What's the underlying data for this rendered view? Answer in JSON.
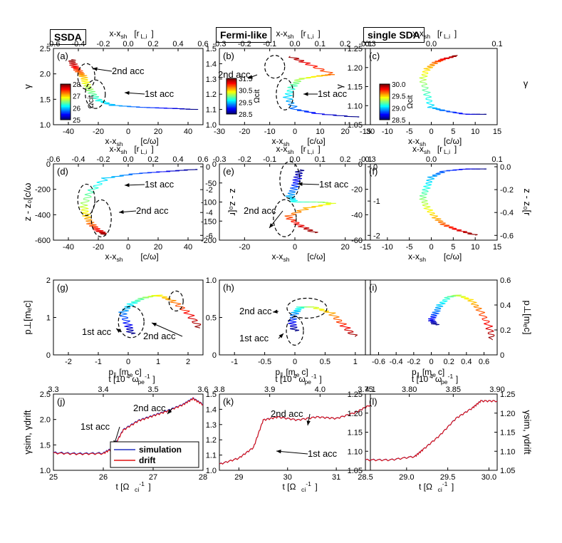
{
  "column_titles": [
    "SSDA",
    "Fermi-like",
    "single SDA"
  ],
  "chart_data": [
    {
      "id": "a",
      "type": "line",
      "panel_label": "(a)",
      "xlabel": "x-x_sh[c/ω_pe]",
      "xlabel_top": "x-x_sh[r_L,i]",
      "ylabel": "γ",
      "xlim": [
        -50,
        50
      ],
      "ylim": [
        1.0,
        2.5
      ],
      "xticks": [
        -40,
        -20,
        0,
        20,
        40
      ],
      "xticks_top": [
        "-0.6",
        "-0.4",
        "-0.2",
        "0.0",
        "0.2",
        "0.4",
        "0.6"
      ],
      "yticks": [
        "1.0",
        "1.5",
        "2.0",
        "2.5"
      ],
      "colorbar": {
        "label": "Ω_ci t",
        "ticks": [
          "28",
          "27",
          "26",
          "25"
        ],
        "range": [
          25,
          28
        ]
      },
      "annotations": [
        "2nd acc",
        "1st acc"
      ],
      "series": [
        {
          "x": [
            45,
            30,
            10,
            -10,
            -20,
            -25,
            -28,
            -30,
            -33,
            -36,
            -38
          ],
          "y": [
            1.3,
            1.32,
            1.34,
            1.38,
            1.48,
            1.65,
            1.8,
            1.95,
            2.05,
            2.15,
            2.28
          ]
        }
      ]
    },
    {
      "id": "b",
      "type": "line",
      "panel_label": "(b)",
      "xlabel": "x-x_sh[c/ω_pe]",
      "xlabel_top": "x-x_sh[r_L,i]",
      "ylabel": "",
      "xlim": [
        -30,
        30
      ],
      "ylim": [
        1.0,
        1.5
      ],
      "xticks": [
        -30,
        -20,
        -10,
        0,
        10,
        20,
        30
      ],
      "xticks_top": [
        "-0.3",
        "-0.2",
        "-0.1",
        "0.0",
        "0.1",
        "0.2",
        "0.3"
      ],
      "yticks": [
        "1.0",
        "1.1",
        "1.2",
        "1.3",
        "1.4",
        "1.5"
      ],
      "colorbar": {
        "label": "Ω_ci t",
        "ticks": [
          "31.5",
          "30.5",
          "29.5",
          "28.5"
        ],
        "range": [
          28.5,
          31.5
        ]
      },
      "annotations": [
        "2nd acc",
        "1st acc"
      ],
      "series": [
        {
          "x": [
            25,
            10,
            0,
            -3,
            -1,
            2,
            10,
            15,
            5,
            -2
          ],
          "y": [
            1.05,
            1.07,
            1.1,
            1.18,
            1.25,
            1.3,
            1.32,
            1.33,
            1.4,
            1.45
          ]
        }
      ]
    },
    {
      "id": "c",
      "type": "line",
      "panel_label": "(c)",
      "xlabel": "x-x_sh[c/ω_pe]",
      "xlabel_top": "x-x_sh[r_L,i]",
      "ylabel": "γ",
      "xlim": [
        -15,
        15
      ],
      "ylim": [
        1.05,
        1.27
      ],
      "xticks": [
        -15,
        -10,
        -5,
        0,
        5,
        10,
        15
      ],
      "xticks_top": [
        "-0.1",
        "0.0",
        "0.1"
      ],
      "yticks": [
        "1.05",
        "1.10",
        "1.15",
        "1.20",
        "1.25"
      ],
      "colorbar": {
        "label": "Ω_ci t",
        "ticks": [
          "30.0",
          "29.5",
          "29.0",
          "28.5"
        ],
        "range": [
          28.5,
          30.0
        ]
      },
      "series": [
        {
          "x": [
            12,
            8,
            3,
            0,
            -1,
            -2,
            -1,
            1,
            3,
            6
          ],
          "y": [
            1.08,
            1.08,
            1.09,
            1.1,
            1.14,
            1.18,
            1.21,
            1.23,
            1.24,
            1.25
          ]
        }
      ]
    },
    {
      "id": "d",
      "type": "line",
      "panel_label": "(d)",
      "xlabel": "x-x_sh[c/ω_pe]",
      "xlabel_top": "x-x_sh[r_L,i]",
      "ylabel": "z - z_0[c/ω_pe]",
      "ylabel_right": "z - z_0[r_L,i]",
      "xlim": [
        -50,
        50
      ],
      "ylim": [
        -650,
        50
      ],
      "xticks": [
        -40,
        -20,
        0,
        20,
        40
      ],
      "xticks_top": [
        "-0.6",
        "-0.4",
        "-0.2",
        "0.0",
        "0.2",
        "0.4",
        "0.6"
      ],
      "yticks": [
        "-600",
        "-400",
        "-200",
        "0"
      ],
      "yticks_right": [
        "0",
        "-2",
        "-4",
        "-6"
      ],
      "annotations": [
        "1st acc",
        "2nd acc"
      ],
      "series": [
        {
          "x": [
            45,
            25,
            5,
            -15,
            -25,
            -30,
            -28,
            -25,
            -20,
            -15
          ],
          "y": [
            0,
            -20,
            -40,
            -80,
            -200,
            -330,
            -420,
            -500,
            -560,
            -600
          ]
        }
      ]
    },
    {
      "id": "e",
      "type": "line",
      "panel_label": "(e)",
      "xlabel": "x-x_sh[c/ω_pe]",
      "xlabel_top": "x-x_sh[r_L,i]",
      "ylabel": "",
      "ylabel_right": "",
      "xlim": [
        -30,
        30
      ],
      "ylim": [
        -240,
        20
      ],
      "xticks": [
        -20,
        0,
        20
      ],
      "xticks_top": [
        "-0.3",
        "-0.2",
        "-0.1",
        "0.0",
        "0.1",
        "0.2",
        "0.3"
      ],
      "yticks": [
        "-200",
        "-150",
        "-100",
        "-50",
        "0"
      ],
      "yticks_right": [
        "0",
        "-1",
        "-2"
      ],
      "annotations": [
        "1st acc",
        "2nd acc"
      ],
      "series": [
        {
          "x": [
            2,
            1,
            0,
            -2,
            0,
            10,
            15,
            5,
            -3,
            2,
            8
          ],
          "y": [
            0,
            -30,
            -60,
            -90,
            -110,
            -110,
            -115,
            -130,
            -160,
            -190,
            -215
          ]
        }
      ]
    },
    {
      "id": "f",
      "type": "line",
      "panel_label": "(f)",
      "xlabel": "x-x_sh[c/ω_pe]",
      "xlabel_top": "x-x_sh[r_L,i]",
      "ylabel": "",
      "ylabel_right": "z - z_0[r_L,i]",
      "xlim": [
        -15,
        15
      ],
      "ylim": [
        -70,
        5
      ],
      "xticks": [
        -15,
        -10,
        -5,
        0,
        5,
        10,
        15
      ],
      "xticks_top": [
        "-0.1",
        "0.0",
        "0.1"
      ],
      "yticks": [
        "-60",
        "-40",
        "-20",
        "0"
      ],
      "yticks_right": [
        "0.0",
        "-0.2",
        "-0.4",
        "-0.6"
      ],
      "series": [
        {
          "x": [
            12,
            8,
            3,
            0,
            -1,
            -2,
            -1,
            1,
            3,
            6,
            10
          ],
          "y": [
            0,
            0,
            -2,
            -8,
            -18,
            -28,
            -38,
            -48,
            -55,
            -60,
            -65
          ]
        }
      ]
    },
    {
      "id": "g",
      "type": "line",
      "panel_label": "(g)",
      "xlabel": "p_∥[m_e c]",
      "ylabel": "p_⊥[m_e c]",
      "xlim": [
        -2.5,
        2.5
      ],
      "ylim": [
        0,
        2.5
      ],
      "xticks": [
        -2,
        -1,
        0,
        1,
        2
      ],
      "yticks": [
        "0",
        "1",
        "2"
      ],
      "annotations": [
        "1st acc",
        "2nd acc"
      ],
      "series": [
        {
          "x": [
            0.1,
            0.0,
            -0.2,
            0.1,
            0.5,
            1.0,
            1.5,
            2.0,
            2.4
          ],
          "y": [
            0.7,
            1.0,
            1.4,
            1.7,
            1.9,
            2.0,
            1.8,
            1.4,
            0.9
          ]
        }
      ]
    },
    {
      "id": "h",
      "type": "line",
      "panel_label": "(h)",
      "xlabel": "p_∥[m_e c]",
      "ylabel": "",
      "xlim": [
        -1.25,
        1.25
      ],
      "ylim": [
        0,
        1.25
      ],
      "xticks": [
        -1.0,
        -0.5,
        0.0,
        0.5,
        1.0
      ],
      "yticks": [
        "0",
        "0.5",
        "1.0"
      ],
      "annotations": [
        "2nd acc",
        "1st acc"
      ],
      "series": [
        {
          "x": [
            0.0,
            -0.05,
            0.0,
            0.1,
            0.3,
            0.6,
            0.8,
            1.0
          ],
          "y": [
            0.4,
            0.55,
            0.7,
            0.8,
            0.8,
            0.7,
            0.5,
            0.3
          ]
        }
      ]
    },
    {
      "id": "i",
      "type": "line",
      "panel_label": "(i)",
      "xlabel": "p_∥[m_e c]",
      "ylabel": "",
      "ylabel_right": "p_⊥[m_e c]",
      "xlim": [
        -0.75,
        0.75
      ],
      "ylim": [
        0,
        0.75
      ],
      "xticks": [
        -0.6,
        -0.4,
        -0.2,
        0.0,
        0.2,
        0.4,
        0.6
      ],
      "yticks": [],
      "yticks_right": [
        "0",
        "0.2",
        "0.4",
        "0.6"
      ],
      "series": [
        {
          "x": [
            0.05,
            0.0,
            0.05,
            0.1,
            0.2,
            0.3,
            0.45,
            0.55,
            0.65,
            0.7
          ],
          "y": [
            0.3,
            0.35,
            0.42,
            0.5,
            0.58,
            0.6,
            0.55,
            0.45,
            0.3,
            0.15
          ]
        }
      ]
    },
    {
      "id": "j",
      "type": "line",
      "panel_label": "(j)",
      "xlabel": "t [Ω_ci^-1]",
      "xlabel_top": "t [10^4 ω_pe^-1]",
      "ylabel": "γ_sim, γ_drift",
      "xlim": [
        25,
        28
      ],
      "ylim": [
        1.0,
        2.5
      ],
      "xticks": [
        25,
        26,
        27,
        28
      ],
      "xticks_top": [
        "3.3",
        "3.4",
        "3.5",
        "3.6"
      ],
      "yticks": [
        "1.0",
        "1.5",
        "2.0",
        "2.5"
      ],
      "annotations": [
        "2nd acc",
        "1st acc"
      ],
      "legend": [
        "simulation",
        "drift"
      ],
      "series": [
        {
          "name": "simulation",
          "color": "#2030c0",
          "x": [
            25.0,
            25.5,
            26.0,
            26.2,
            26.4,
            26.7,
            27.0,
            27.3,
            27.6,
            27.8,
            28.0
          ],
          "y": [
            1.35,
            1.33,
            1.34,
            1.45,
            1.8,
            1.98,
            2.08,
            2.18,
            2.3,
            2.42,
            2.3
          ]
        },
        {
          "name": "drift",
          "color": "#e01010",
          "x": [
            25.0,
            25.5,
            26.0,
            26.2,
            26.4,
            26.7,
            27.0,
            27.3,
            27.6,
            27.8,
            28.0
          ],
          "y": [
            1.34,
            1.32,
            1.33,
            1.44,
            1.79,
            1.97,
            2.07,
            2.17,
            2.29,
            2.41,
            2.29
          ]
        }
      ]
    },
    {
      "id": "k",
      "type": "line",
      "panel_label": "(k)",
      "xlabel": "t [Ω_ci^-1]",
      "xlabel_top": "t [10^4 ω_pe^-1]",
      "ylabel": "",
      "xlim": [
        28.6,
        31.7
      ],
      "ylim": [
        1.0,
        1.5
      ],
      "xticks": [
        29,
        30,
        31
      ],
      "xticks_top": [
        "3.8",
        "3.9",
        "4.0",
        "4.1"
      ],
      "yticks": [
        "1.0",
        "1.1",
        "1.2",
        "1.3",
        "1.4",
        "1.5"
      ],
      "annotations": [
        "2nd acc",
        "1st acc"
      ],
      "series": [
        {
          "name": "simulation",
          "x": [
            28.6,
            29.0,
            29.3,
            29.5,
            29.8,
            30.2,
            30.6,
            31.0,
            31.4,
            31.7
          ],
          "y": [
            1.04,
            1.08,
            1.15,
            1.33,
            1.35,
            1.33,
            1.35,
            1.34,
            1.38,
            1.43
          ]
        },
        {
          "name": "drift",
          "x": [
            28.6,
            29.0,
            29.3,
            29.5,
            29.8,
            30.2,
            30.6,
            31.0,
            31.4,
            31.7
          ],
          "y": [
            1.04,
            1.08,
            1.15,
            1.33,
            1.35,
            1.33,
            1.35,
            1.34,
            1.38,
            1.43
          ]
        }
      ]
    },
    {
      "id": "l",
      "type": "line",
      "panel_label": "(l)",
      "xlabel": "t [Ω_ci^-1]",
      "xlabel_top": "t [10^4 ω_pe^-1]",
      "ylabel": "",
      "ylabel_right": "γ_sim, γ_drift",
      "xlim": [
        28.5,
        30.1
      ],
      "ylim": [
        1.05,
        1.27
      ],
      "xticks": [
        "28.5",
        "29.0",
        "29.5",
        "30.0"
      ],
      "xticks_top": [
        "3.75",
        "3.80",
        "3.85",
        "3.90"
      ],
      "yticks": [
        "1.05",
        "1.10",
        "1.15",
        "1.20",
        "1.25"
      ],
      "yticks_right": [
        "1.05",
        "1.10",
        "1.15",
        "1.20",
        "1.25"
      ],
      "series": [
        {
          "name": "simulation",
          "x": [
            28.5,
            28.8,
            29.1,
            29.2,
            29.4,
            29.6,
            29.8,
            29.9,
            30.1
          ],
          "y": [
            1.08,
            1.08,
            1.09,
            1.11,
            1.15,
            1.2,
            1.23,
            1.25,
            1.25
          ]
        },
        {
          "name": "drift",
          "x": [
            28.5,
            28.8,
            29.1,
            29.2,
            29.4,
            29.6,
            29.8,
            29.9,
            30.1
          ],
          "y": [
            1.08,
            1.08,
            1.09,
            1.11,
            1.15,
            1.2,
            1.23,
            1.25,
            1.25
          ]
        }
      ]
    }
  ]
}
